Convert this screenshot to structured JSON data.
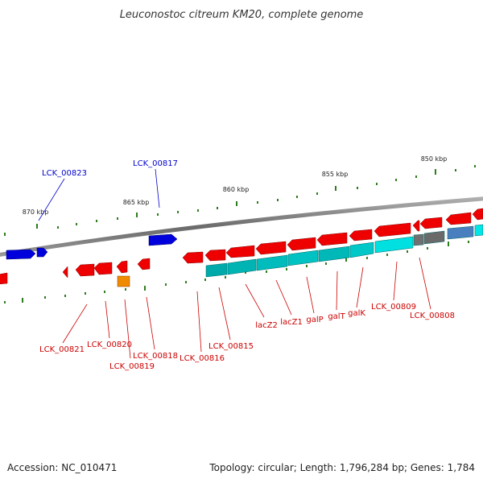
{
  "title": "Leuconostoc citreum KM20, complete genome",
  "footer": {
    "accession": "Accession: NC_010471",
    "summary": "Topology: circular; Length: 1,796,284 bp; Genes: 1,784"
  },
  "colors": {
    "backbone": "#808080",
    "tick": "#2e7d1e",
    "forward_gene": "#0000dd",
    "reverse_gene": "#ee0000",
    "reverse_label": "#cc0000",
    "forward_label": "#0000cc",
    "operon": "#00bcbc",
    "highlight": "#f08a00",
    "grey_gene": "#707070",
    "steel_gene": "#4a7fbf"
  },
  "ticks": [
    {
      "label": "870 kbp"
    },
    {
      "label": "865 kbp"
    },
    {
      "label": "860 kbp"
    },
    {
      "label": "855 kbp"
    },
    {
      "label": "850 kbp"
    }
  ],
  "genes_forward": [
    "LCK_00823",
    "LCK_00817"
  ],
  "genes_reverse": [
    "LCK_00821",
    "LCK_00820",
    "LCK_00819",
    "LCK_00818",
    "LCK_00816",
    "LCK_00815",
    "lacZ2",
    "lacZ1",
    "galP",
    "galT",
    "galK",
    "LCK_00809",
    "LCK_00808"
  ]
}
